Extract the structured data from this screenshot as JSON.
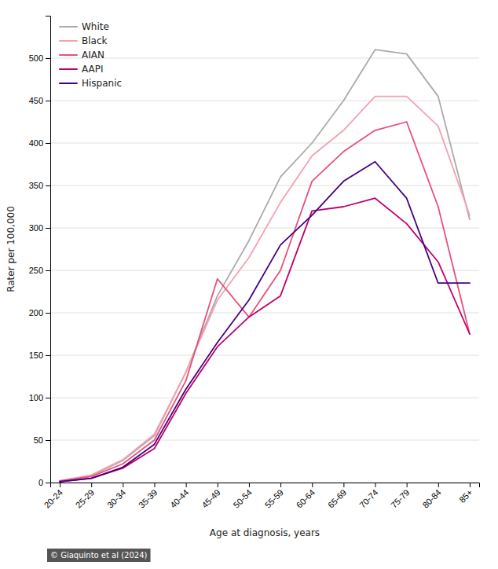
{
  "chart_data": {
    "type": "line",
    "categories": [
      "20-24",
      "25-29",
      "30-34",
      "35-39",
      "40-44",
      "45-49",
      "50-54",
      "55-59",
      "60-64",
      "65-69",
      "70-74",
      "75-79",
      "80-84",
      "85+"
    ],
    "series": [
      {
        "name": "White",
        "color": "#aaaaaa",
        "values": [
          2,
          8,
          26,
          55,
          130,
          220,
          285,
          360,
          400,
          450,
          510,
          505,
          455,
          310
        ]
      },
      {
        "name": "Black",
        "color": "#f4a0b0",
        "values": [
          2,
          9,
          27,
          57,
          130,
          215,
          265,
          330,
          385,
          415,
          455,
          455,
          420,
          315
        ]
      },
      {
        "name": "AIAN",
        "color": "#e8507a",
        "values": [
          2,
          7,
          22,
          50,
          120,
          240,
          195,
          250,
          355,
          390,
          415,
          425,
          325,
          175
        ]
      },
      {
        "name": "AAPI",
        "color": "#c0006e",
        "values": [
          1,
          5,
          17,
          40,
          105,
          160,
          195,
          220,
          320,
          325,
          335,
          305,
          260,
          175
        ]
      },
      {
        "name": "Hispanic",
        "color": "#440080",
        "values": [
          1,
          5,
          18,
          45,
          110,
          165,
          215,
          280,
          315,
          355,
          378,
          335,
          235,
          235
        ]
      }
    ],
    "xlabel": "Age at diagnosis, years",
    "ylabel": "Rater per 100,000",
    "annotation": "© Giaquinto et al (2024)",
    "ylim": [
      0,
      550
    ],
    "yticks": [
      0,
      50,
      100,
      150,
      200,
      250,
      300,
      350,
      400,
      450,
      500
    ],
    "grid": true,
    "legend": "upper left"
  }
}
